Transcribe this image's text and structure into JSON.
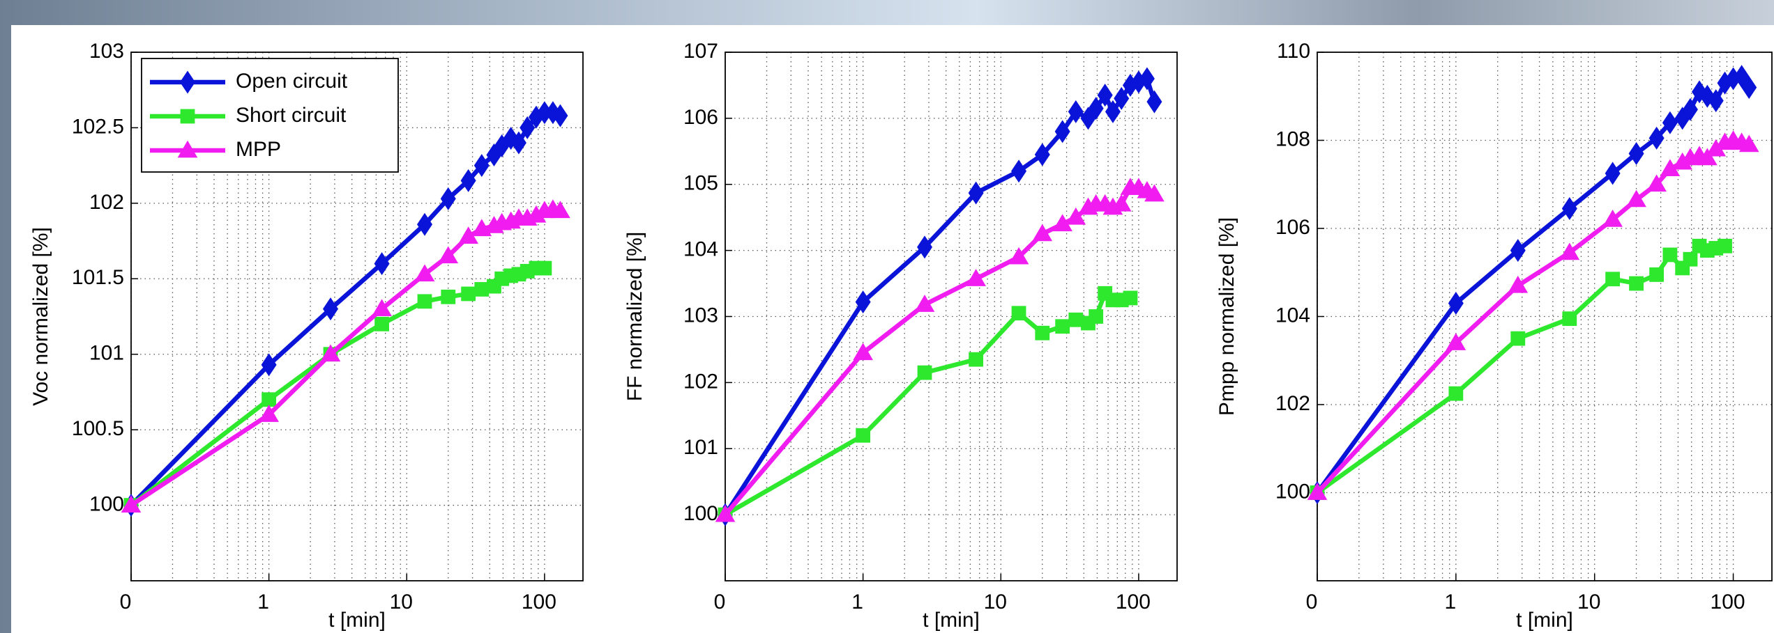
{
  "chart_data": [
    {
      "type": "line",
      "xscale": "log",
      "grid": true,
      "legend": "upper left",
      "xlabel": "t [min]",
      "ylabel": "Voc normalized [%]",
      "x": [
        0.1,
        1,
        2.8,
        6.6,
        13.5,
        20,
        28,
        35,
        43,
        49,
        57,
        65,
        75,
        87,
        100,
        115,
        130
      ],
      "xlim": [
        0.1,
        190
      ],
      "xticks": [
        {
          "value": 0.1,
          "label": "0"
        },
        1,
        10,
        100
      ],
      "ylim": [
        99.5,
        103
      ],
      "yticks": [
        100,
        100.5,
        101,
        101.5,
        102,
        102.5,
        103
      ],
      "series": [
        {
          "name": "Open circuit",
          "color": "#0a14d8",
          "marker": "diamond",
          "values": [
            100,
            100.93,
            101.3,
            101.6,
            101.86,
            102.03,
            102.15,
            102.25,
            102.32,
            102.38,
            102.43,
            102.4,
            102.5,
            102.57,
            102.6,
            102.6,
            102.58
          ]
        },
        {
          "name": "Short circuit",
          "color": "#2ee82e",
          "marker": "square",
          "values": [
            100,
            100.7,
            101.0,
            101.2,
            101.35,
            101.38,
            101.4,
            101.43,
            101.45,
            101.5,
            101.52,
            101.53,
            101.55,
            101.57,
            101.57,
            null,
            null
          ]
        },
        {
          "name": "MPP",
          "color": "#f01cf0",
          "marker": "triangle",
          "values": [
            100,
            100.6,
            101.0,
            101.3,
            101.53,
            101.65,
            101.78,
            101.83,
            101.85,
            101.87,
            101.88,
            101.9,
            101.9,
            101.92,
            101.95,
            101.96,
            101.95
          ]
        }
      ]
    },
    {
      "type": "line",
      "xscale": "log",
      "grid": true,
      "xlabel": "t [min]",
      "ylabel": "FF normalized [%]",
      "x": [
        0.1,
        1,
        2.8,
        6.6,
        13.5,
        20,
        28,
        35,
        43,
        49,
        57,
        65,
        75,
        87,
        100,
        115,
        130
      ],
      "xlim": [
        0.1,
        190
      ],
      "xticks": [
        {
          "value": 0.1,
          "label": "0"
        },
        1,
        10,
        100
      ],
      "ylim": [
        99,
        107
      ],
      "yticks": [
        100,
        101,
        102,
        103,
        104,
        105,
        106,
        107
      ],
      "series": [
        {
          "color": "#0a14d8",
          "marker": "diamond",
          "values": [
            100,
            103.22,
            104.05,
            104.87,
            105.2,
            105.45,
            105.8,
            106.1,
            106.0,
            106.15,
            106.35,
            106.1,
            106.3,
            106.5,
            106.55,
            106.6,
            106.25
          ]
        },
        {
          "color": "#2ee82e",
          "marker": "square",
          "values": [
            100,
            101.2,
            102.15,
            102.35,
            103.05,
            102.75,
            102.85,
            102.95,
            102.9,
            103.0,
            103.35,
            103.25,
            103.25,
            103.28,
            null,
            null,
            null
          ]
        },
        {
          "color": "#f01cf0",
          "marker": "triangle",
          "values": [
            100,
            102.45,
            103.18,
            103.57,
            103.9,
            104.25,
            104.4,
            104.5,
            104.65,
            104.7,
            104.7,
            104.65,
            104.7,
            104.95,
            104.95,
            104.9,
            104.85
          ]
        }
      ]
    },
    {
      "type": "line",
      "xscale": "log",
      "grid": true,
      "xlabel": "t [min]",
      "ylabel": "Pmpp normalized [%]",
      "x": [
        0.1,
        1,
        2.8,
        6.6,
        13.5,
        20,
        28,
        35,
        43,
        49,
        57,
        65,
        75,
        87,
        100,
        115,
        130
      ],
      "xlim": [
        0.1,
        190
      ],
      "xticks": [
        {
          "value": 0.1,
          "label": "0"
        },
        1,
        10,
        100
      ],
      "ylim": [
        98,
        110
      ],
      "yticks": [
        100,
        102,
        104,
        106,
        108,
        110
      ],
      "series": [
        {
          "color": "#0a14d8",
          "marker": "diamond",
          "values": [
            100,
            104.3,
            105.5,
            106.45,
            107.25,
            107.7,
            108.05,
            108.4,
            108.5,
            108.7,
            109.1,
            109.0,
            108.9,
            109.3,
            109.4,
            109.45,
            109.2
          ]
        },
        {
          "color": "#2ee82e",
          "marker": "square",
          "values": [
            100,
            102.25,
            103.5,
            103.95,
            104.85,
            104.75,
            104.95,
            105.4,
            105.1,
            105.3,
            105.6,
            105.5,
            105.55,
            105.6,
            null,
            null,
            null
          ]
        },
        {
          "color": "#f01cf0",
          "marker": "triangle",
          "values": [
            100,
            103.4,
            104.7,
            105.45,
            106.2,
            106.65,
            107.0,
            107.35,
            107.5,
            107.6,
            107.65,
            107.6,
            107.8,
            107.95,
            108.0,
            107.95,
            107.9
          ]
        }
      ]
    }
  ]
}
